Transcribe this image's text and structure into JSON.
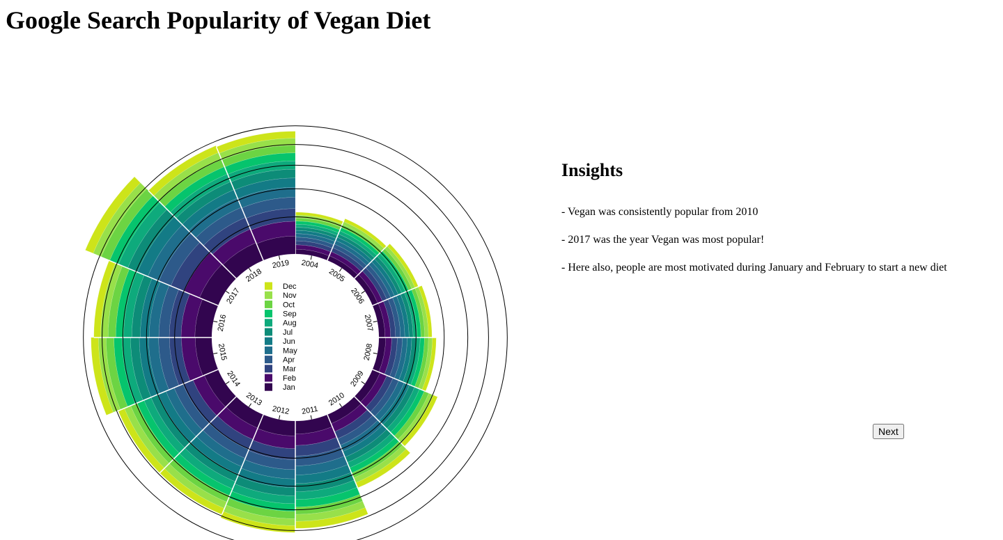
{
  "chart_data": {
    "type": "radial-stacked-bar",
    "title": "Google Search Popularity of Vegan Diet",
    "categories": [
      "2004",
      "2005",
      "2006",
      "2007",
      "2008",
      "2009",
      "2010",
      "2011",
      "2012",
      "2013",
      "2014",
      "2015",
      "2016",
      "2017",
      "2018",
      "2019"
    ],
    "ylim": [
      0,
      1200
    ],
    "yticks": [
      200,
      400,
      600,
      800,
      1000
    ],
    "series": [
      {
        "name": "Jan",
        "color": "#32054f",
        "values": [
          22,
          23,
          26,
          28,
          31,
          38,
          46,
          62,
          72,
          70,
          72,
          80,
          82,
          100,
          94,
          88
        ]
      },
      {
        "name": "Feb",
        "color": "#4a0a6b",
        "values": [
          21,
          22,
          25,
          27,
          30,
          37,
          45,
          62,
          70,
          68,
          68,
          78,
          78,
          98,
          86,
          85
        ]
      },
      {
        "name": "Mar",
        "color": "#30437f",
        "values": [
          20,
          21,
          24,
          26,
          29,
          36,
          43,
          63,
          68,
          66,
          66,
          76,
          75,
          97,
          82,
          82
        ]
      },
      {
        "name": "Apr",
        "color": "#2d5a8a",
        "values": [
          19,
          21,
          23,
          26,
          28,
          36,
          42,
          64,
          67,
          64,
          64,
          75,
          72,
          96,
          78,
          80
        ]
      },
      {
        "name": "May",
        "color": "#1f6e8c",
        "values": [
          19,
          21,
          23,
          25,
          28,
          36,
          42,
          64,
          67,
          64,
          64,
          75,
          72,
          97,
          77,
          77
        ]
      },
      {
        "name": "Jun",
        "color": "#137b86",
        "values": [
          18,
          20,
          23,
          25,
          27,
          36,
          41,
          64,
          67,
          64,
          63,
          74,
          71,
          98,
          75,
          76
        ]
      },
      {
        "name": "Jul",
        "color": "#0d8c78",
        "values": [
          18,
          20,
          23,
          25,
          27,
          37,
          41,
          65,
          67,
          64,
          63,
          74,
          71,
          98,
          75,
          76
        ]
      },
      {
        "name": "Aug",
        "color": "#0eaa7c",
        "values": [
          18,
          21,
          23,
          25,
          27,
          37,
          42,
          65,
          68,
          65,
          64,
          75,
          72,
          98,
          76,
          76
        ]
      },
      {
        "name": "Sep",
        "color": "#06c46d",
        "values": [
          19,
          21,
          23,
          25,
          28,
          37,
          42,
          66,
          68,
          65,
          65,
          76,
          73,
          99,
          76,
          76
        ]
      },
      {
        "name": "Oct",
        "color": "#6cd443",
        "values": [
          19,
          21,
          23,
          25,
          28,
          38,
          42,
          67,
          69,
          65,
          65,
          77,
          74,
          100,
          78,
          75
        ]
      },
      {
        "name": "Nov",
        "color": "#98e04a",
        "values": [
          19,
          21,
          23,
          26,
          28,
          37,
          43,
          67,
          68,
          65,
          65,
          78,
          76,
          100,
          78,
          74
        ]
      },
      {
        "name": "Dec",
        "color": "#cde41a",
        "values": [
          19,
          22,
          24,
          25,
          28,
          37,
          46,
          69,
          69,
          65,
          66,
          78,
          70,
          99,
          79,
          74
        ]
      }
    ]
  },
  "insights": {
    "title": "Insights",
    "items": [
      "- Vegan was consistently popular from 2010",
      "- 2017 was the year Vegan was most popular!",
      "- Here also, people are most motivated during January and February to start a new diet"
    ]
  },
  "button": "Next"
}
